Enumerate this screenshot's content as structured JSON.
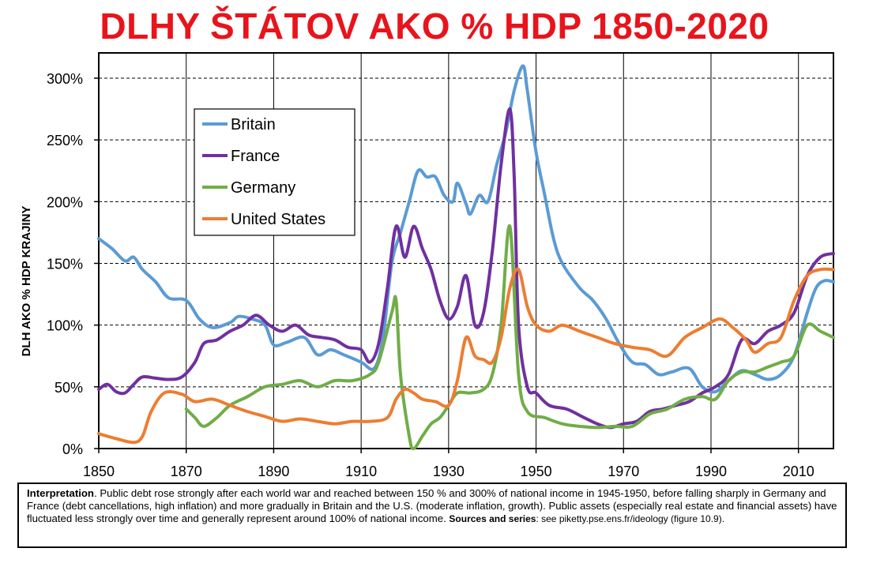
{
  "title": "DLHY ŠTÁTOV AKO % HDP 1850-2020",
  "note": {
    "lead": "Interpretation",
    "body": ". Public debt rose strongly after each world war and reached between 150 %  and 300% of national income in 1945-1950, before falling sharply in Germany and France (debt cancellations, high inflation) and more gradually in Britain and the U.S. (moderate inflation, growth). Public assets (especially real estate and financial assets) have fluctuated less strongly over time and generally represent around 100% of national income.  ",
    "sources_label": "Sources and series",
    "sources_text": ": see piketty.pse.ens.fr/ideology (figure 10.9)."
  },
  "chart_data": {
    "type": "line",
    "title": "DLHY ŠTÁTOV AKO % HDP 1850-2020",
    "xlabel": "",
    "ylabel": "DLH AKO % HDP KRAJINY",
    "xlim": [
      1850,
      2018
    ],
    "ylim": [
      0,
      3.1
    ],
    "x_ticks": [
      1850,
      1870,
      1890,
      1910,
      1930,
      1950,
      1970,
      1990,
      2010
    ],
    "x_tick_labels": [
      "1850",
      "1870",
      "1890",
      "1910",
      "1930",
      "1950",
      "1970",
      "1990",
      "2010"
    ],
    "y_ticks": [
      0,
      0.5,
      1,
      1.5,
      2,
      2.5,
      3
    ],
    "y_tick_labels": [
      "0%",
      "50%",
      "100%",
      "150%",
      "200%",
      "250%",
      "300%"
    ],
    "grid": "horizontal dashed",
    "legend_position": "top-left",
    "series": [
      {
        "name": "Britain",
        "color": "#5b9bd5",
        "points": [
          [
            1850,
            1.7
          ],
          [
            1853,
            1.62
          ],
          [
            1856,
            1.52
          ],
          [
            1858,
            1.55
          ],
          [
            1860,
            1.45
          ],
          [
            1863,
            1.35
          ],
          [
            1866,
            1.22
          ],
          [
            1870,
            1.2
          ],
          [
            1873,
            1.05
          ],
          [
            1876,
            0.98
          ],
          [
            1880,
            1.02
          ],
          [
            1882,
            1.07
          ],
          [
            1885,
            1.05
          ],
          [
            1888,
            1.0
          ],
          [
            1890,
            0.84
          ],
          [
            1893,
            0.86
          ],
          [
            1897,
            0.9
          ],
          [
            1900,
            0.76
          ],
          [
            1903,
            0.8
          ],
          [
            1906,
            0.76
          ],
          [
            1910,
            0.7
          ],
          [
            1913,
            0.65
          ],
          [
            1915,
            0.9
          ],
          [
            1917,
            1.5
          ],
          [
            1919,
            1.75
          ],
          [
            1921,
            2.0
          ],
          [
            1923,
            2.25
          ],
          [
            1925,
            2.2
          ],
          [
            1927,
            2.2
          ],
          [
            1929,
            2.05
          ],
          [
            1931,
            2.0
          ],
          [
            1932,
            2.15
          ],
          [
            1934,
            1.98
          ],
          [
            1935,
            1.9
          ],
          [
            1937,
            2.05
          ],
          [
            1939,
            2.0
          ],
          [
            1941,
            2.3
          ],
          [
            1943,
            2.55
          ],
          [
            1945,
            2.9
          ],
          [
            1947,
            3.1
          ],
          [
            1948,
            2.9
          ],
          [
            1950,
            2.4
          ],
          [
            1952,
            2.05
          ],
          [
            1954,
            1.7
          ],
          [
            1956,
            1.5
          ],
          [
            1960,
            1.3
          ],
          [
            1963,
            1.2
          ],
          [
            1966,
            1.05
          ],
          [
            1969,
            0.85
          ],
          [
            1972,
            0.7
          ],
          [
            1975,
            0.68
          ],
          [
            1978,
            0.6
          ],
          [
            1981,
            0.62
          ],
          [
            1985,
            0.65
          ],
          [
            1988,
            0.5
          ],
          [
            1991,
            0.46
          ],
          [
            1994,
            0.55
          ],
          [
            1997,
            0.63
          ],
          [
            2000,
            0.6
          ],
          [
            2003,
            0.56
          ],
          [
            2006,
            0.6
          ],
          [
            2009,
            0.75
          ],
          [
            2012,
            1.1
          ],
          [
            2014,
            1.3
          ],
          [
            2016,
            1.36
          ],
          [
            2018,
            1.35
          ]
        ]
      },
      {
        "name": "France",
        "color": "#7030a0",
        "points": [
          [
            1850,
            0.48
          ],
          [
            1852,
            0.52
          ],
          [
            1854,
            0.46
          ],
          [
            1856,
            0.45
          ],
          [
            1858,
            0.52
          ],
          [
            1860,
            0.58
          ],
          [
            1863,
            0.57
          ],
          [
            1866,
            0.56
          ],
          [
            1869,
            0.58
          ],
          [
            1872,
            0.7
          ],
          [
            1874,
            0.85
          ],
          [
            1877,
            0.88
          ],
          [
            1880,
            0.95
          ],
          [
            1883,
            1.0
          ],
          [
            1886,
            1.08
          ],
          [
            1889,
            1.0
          ],
          [
            1892,
            0.95
          ],
          [
            1895,
            1.0
          ],
          [
            1898,
            0.92
          ],
          [
            1901,
            0.9
          ],
          [
            1904,
            0.88
          ],
          [
            1907,
            0.82
          ],
          [
            1910,
            0.8
          ],
          [
            1912,
            0.7
          ],
          [
            1914,
            0.85
          ],
          [
            1916,
            1.3
          ],
          [
            1918,
            1.8
          ],
          [
            1920,
            1.55
          ],
          [
            1922,
            1.8
          ],
          [
            1924,
            1.62
          ],
          [
            1926,
            1.45
          ],
          [
            1928,
            1.2
          ],
          [
            1930,
            1.05
          ],
          [
            1932,
            1.15
          ],
          [
            1934,
            1.4
          ],
          [
            1936,
            1.0
          ],
          [
            1938,
            1.1
          ],
          [
            1940,
            1.6
          ],
          [
            1942,
            2.3
          ],
          [
            1944,
            2.75
          ],
          [
            1945,
            2.2
          ],
          [
            1946,
            1.0
          ],
          [
            1948,
            0.5
          ],
          [
            1950,
            0.45
          ],
          [
            1953,
            0.35
          ],
          [
            1957,
            0.32
          ],
          [
            1961,
            0.25
          ],
          [
            1964,
            0.2
          ],
          [
            1967,
            0.17
          ],
          [
            1970,
            0.2
          ],
          [
            1973,
            0.22
          ],
          [
            1976,
            0.3
          ],
          [
            1979,
            0.32
          ],
          [
            1982,
            0.35
          ],
          [
            1985,
            0.38
          ],
          [
            1988,
            0.45
          ],
          [
            1991,
            0.5
          ],
          [
            1994,
            0.6
          ],
          [
            1997,
            0.88
          ],
          [
            2000,
            0.85
          ],
          [
            2003,
            0.95
          ],
          [
            2006,
            1.0
          ],
          [
            2009,
            1.1
          ],
          [
            2012,
            1.4
          ],
          [
            2015,
            1.55
          ],
          [
            2018,
            1.58
          ]
        ]
      },
      {
        "name": "Germany",
        "color": "#70ad47",
        "points": [
          [
            1870,
            0.32
          ],
          [
            1872,
            0.25
          ],
          [
            1874,
            0.18
          ],
          [
            1877,
            0.25
          ],
          [
            1880,
            0.35
          ],
          [
            1884,
            0.42
          ],
          [
            1888,
            0.5
          ],
          [
            1892,
            0.52
          ],
          [
            1896,
            0.55
          ],
          [
            1900,
            0.5
          ],
          [
            1904,
            0.55
          ],
          [
            1908,
            0.55
          ],
          [
            1912,
            0.6
          ],
          [
            1914,
            0.7
          ],
          [
            1917,
            1.1
          ],
          [
            1918,
            1.2
          ],
          [
            1919,
            0.6
          ],
          [
            1921,
            0.1
          ],
          [
            1922,
            0.0
          ],
          [
            1924,
            0.1
          ],
          [
            1926,
            0.2
          ],
          [
            1928,
            0.25
          ],
          [
            1930,
            0.35
          ],
          [
            1932,
            0.45
          ],
          [
            1935,
            0.45
          ],
          [
            1938,
            0.48
          ],
          [
            1940,
            0.6
          ],
          [
            1942,
            1.0
          ],
          [
            1944,
            1.8
          ],
          [
            1946,
            0.6
          ],
          [
            1948,
            0.3
          ],
          [
            1952,
            0.25
          ],
          [
            1956,
            0.2
          ],
          [
            1960,
            0.18
          ],
          [
            1964,
            0.17
          ],
          [
            1968,
            0.18
          ],
          [
            1972,
            0.18
          ],
          [
            1976,
            0.28
          ],
          [
            1980,
            0.32
          ],
          [
            1984,
            0.4
          ],
          [
            1988,
            0.42
          ],
          [
            1991,
            0.4
          ],
          [
            1994,
            0.55
          ],
          [
            1997,
            0.62
          ],
          [
            2000,
            0.62
          ],
          [
            2003,
            0.66
          ],
          [
            2006,
            0.7
          ],
          [
            2009,
            0.75
          ],
          [
            2012,
            1.0
          ],
          [
            2015,
            0.95
          ],
          [
            2018,
            0.9
          ]
        ]
      },
      {
        "name": "United States",
        "color": "#ed7d31",
        "points": [
          [
            1850,
            0.12
          ],
          [
            1854,
            0.08
          ],
          [
            1858,
            0.05
          ],
          [
            1860,
            0.1
          ],
          [
            1862,
            0.3
          ],
          [
            1865,
            0.45
          ],
          [
            1869,
            0.44
          ],
          [
            1872,
            0.38
          ],
          [
            1876,
            0.4
          ],
          [
            1880,
            0.35
          ],
          [
            1884,
            0.3
          ],
          [
            1888,
            0.26
          ],
          [
            1892,
            0.22
          ],
          [
            1896,
            0.24
          ],
          [
            1900,
            0.22
          ],
          [
            1904,
            0.2
          ],
          [
            1908,
            0.22
          ],
          [
            1912,
            0.22
          ],
          [
            1916,
            0.25
          ],
          [
            1918,
            0.4
          ],
          [
            1920,
            0.48
          ],
          [
            1922,
            0.45
          ],
          [
            1924,
            0.4
          ],
          [
            1927,
            0.38
          ],
          [
            1930,
            0.35
          ],
          [
            1932,
            0.55
          ],
          [
            1934,
            0.9
          ],
          [
            1936,
            0.75
          ],
          [
            1938,
            0.72
          ],
          [
            1940,
            0.7
          ],
          [
            1942,
            0.9
          ],
          [
            1944,
            1.3
          ],
          [
            1946,
            1.45
          ],
          [
            1948,
            1.15
          ],
          [
            1950,
            1.0
          ],
          [
            1953,
            0.95
          ],
          [
            1956,
            1.0
          ],
          [
            1960,
            0.95
          ],
          [
            1964,
            0.9
          ],
          [
            1968,
            0.85
          ],
          [
            1972,
            0.82
          ],
          [
            1976,
            0.8
          ],
          [
            1980,
            0.75
          ],
          [
            1984,
            0.9
          ],
          [
            1988,
            0.98
          ],
          [
            1992,
            1.05
          ],
          [
            1995,
            0.98
          ],
          [
            1998,
            0.88
          ],
          [
            2000,
            0.78
          ],
          [
            2003,
            0.85
          ],
          [
            2006,
            0.9
          ],
          [
            2009,
            1.2
          ],
          [
            2012,
            1.4
          ],
          [
            2015,
            1.45
          ],
          [
            2018,
            1.45
          ]
        ]
      }
    ]
  }
}
